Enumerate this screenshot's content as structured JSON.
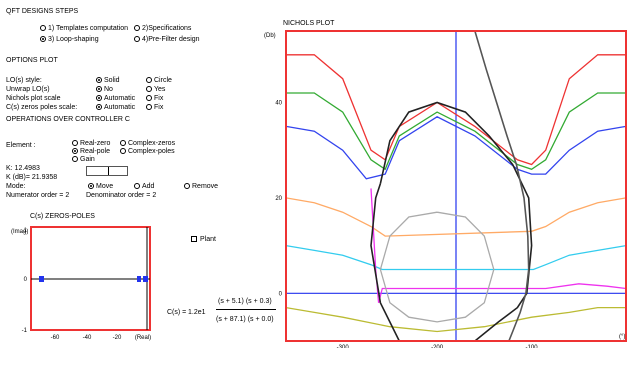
{
  "qft_steps": {
    "title": "QFT DESIGNS STEPS",
    "options": [
      {
        "label": "1) Templates computation",
        "selected": false
      },
      {
        "label": "2)Specifications",
        "selected": false
      },
      {
        "label": "3) Loop-shaping",
        "selected": true
      },
      {
        "label": "4)Pre-Filter design",
        "selected": false
      }
    ]
  },
  "options_plot": {
    "title": "OPTIONS PLOT",
    "rows": [
      {
        "label": "LO(s) style:",
        "opt1": "Solid",
        "opt1_on": true,
        "opt2": "Circle",
        "opt2_on": false
      },
      {
        "label": "Unwrap LO(s)",
        "opt1": "No",
        "opt1_on": true,
        "opt2": "Yes",
        "opt2_on": false
      },
      {
        "label": "Nichols plot scale",
        "opt1": "Automatic",
        "opt1_on": true,
        "opt2": "Fix",
        "opt2_on": false
      },
      {
        "label": "C(s) zeros poles scale:",
        "opt1": "Automatic",
        "opt1_on": true,
        "opt2": "Fix",
        "opt2_on": false
      }
    ]
  },
  "controller_ops": {
    "title": "OPERATIONS OVER CONTROLLER C",
    "element_label": "Element :",
    "elements": [
      {
        "label": "Real-zero",
        "selected": false
      },
      {
        "label": "Complex-zeros",
        "selected": false
      },
      {
        "label": "Real-pole",
        "selected": true
      },
      {
        "label": "Complex-poles",
        "selected": false
      },
      {
        "label": "Gain",
        "selected": false
      }
    ],
    "k_value": "K: 12.4983",
    "k_db": "K (dB)= 21.9358",
    "k_slider": 0.55,
    "mode_label": "Mode:",
    "modes": [
      {
        "label": "Move",
        "selected": true
      },
      {
        "label": "Add",
        "selected": false
      },
      {
        "label": "Remove",
        "selected": false
      }
    ],
    "numerator_order": "Numerator order = 2",
    "denominator_order": "Denominator order = 2"
  },
  "zeros_poles": {
    "title": "C(s) ZEROS-POLES",
    "ylabel": "(Imag)",
    "xlabel": "(Real)",
    "yticks": [
      "1",
      "0",
      "-1"
    ],
    "xticks": [
      "-60",
      "-40",
      "-20"
    ]
  },
  "plant_checkbox": {
    "label": "Plant",
    "checked": false
  },
  "transfer_function": {
    "lhs": "C(s) =",
    "gain": "1.2e1",
    "numerator": "(s + 5.1) (s + 0.3)",
    "denominator": "(s + 87.1) (s + 0.0)"
  },
  "chart_data": {
    "type": "line",
    "title": "NICHOLS PLOT",
    "ylabel": "(Db)",
    "xlabel": "(°)",
    "xticks": [
      "-300",
      "-200",
      "-100"
    ],
    "yticks": [
      "40",
      "20",
      "0"
    ],
    "xlim": [
      -360,
      0
    ],
    "ylim": [
      -10,
      55
    ],
    "series": [
      {
        "color": "#ee3333",
        "values": [
          [
            -360,
            50
          ],
          [
            -330,
            50
          ],
          [
            -300,
            45
          ],
          [
            -270,
            30
          ],
          [
            -255,
            28
          ],
          [
            -240,
            35
          ],
          [
            -200,
            40
          ],
          [
            -160,
            35
          ],
          [
            -115,
            28
          ],
          [
            -100,
            27
          ],
          [
            -85,
            30
          ],
          [
            -60,
            45
          ],
          [
            -30,
            50
          ],
          [
            0,
            50
          ]
        ]
      },
      {
        "color": "#33aa33",
        "values": [
          [
            -360,
            42
          ],
          [
            -330,
            42
          ],
          [
            -300,
            38
          ],
          [
            -270,
            28
          ],
          [
            -255,
            26
          ],
          [
            -240,
            33
          ],
          [
            -200,
            38
          ],
          [
            -160,
            34
          ],
          [
            -115,
            27
          ],
          [
            -100,
            26
          ],
          [
            -85,
            28
          ],
          [
            -60,
            38
          ],
          [
            -30,
            42
          ],
          [
            0,
            42
          ]
        ]
      },
      {
        "color": "#3344ee",
        "values": [
          [
            -360,
            35
          ],
          [
            -330,
            34
          ],
          [
            -300,
            30
          ],
          [
            -275,
            24
          ],
          [
            -255,
            25
          ],
          [
            -240,
            32
          ],
          [
            -200,
            37
          ],
          [
            -160,
            33
          ],
          [
            -115,
            26
          ],
          [
            -100,
            25
          ],
          [
            -85,
            25
          ],
          [
            -60,
            30
          ],
          [
            -30,
            34
          ],
          [
            0,
            35
          ]
        ]
      },
      {
        "color": "#ffaa66",
        "values": [
          [
            -360,
            20
          ],
          [
            -330,
            19
          ],
          [
            -300,
            17
          ],
          [
            -270,
            14
          ],
          [
            -255,
            12
          ],
          [
            -100,
            13
          ],
          [
            -85,
            14
          ],
          [
            -60,
            17
          ],
          [
            -30,
            19
          ],
          [
            0,
            20
          ]
        ]
      },
      {
        "color": "#33ccee",
        "values": [
          [
            -360,
            10
          ],
          [
            -330,
            9
          ],
          [
            -300,
            8
          ],
          [
            -270,
            6
          ],
          [
            -258,
            5
          ],
          [
            -98,
            5
          ],
          [
            -85,
            6
          ],
          [
            -60,
            8
          ],
          [
            -30,
            9
          ],
          [
            0,
            10
          ]
        ]
      },
      {
        "color": "#ee33ee",
        "values": [
          [
            -270,
            22
          ],
          [
            -265,
            5
          ],
          [
            -262,
            -2
          ],
          [
            -258,
            1
          ],
          [
            -95,
            1
          ],
          [
            -85,
            1
          ],
          [
            -50,
            2
          ],
          [
            -20,
            1.5
          ],
          [
            0,
            1
          ]
        ]
      },
      {
        "color": "#bbbb33",
        "values": [
          [
            -360,
            -3
          ],
          [
            -330,
            -4
          ],
          [
            -300,
            -5
          ],
          [
            -250,
            -7
          ],
          [
            -200,
            -8
          ],
          [
            -150,
            -7
          ],
          [
            -100,
            -5
          ],
          [
            -60,
            -4
          ],
          [
            -30,
            -3
          ],
          [
            0,
            -3
          ]
        ]
      },
      {
        "color": "#aaaaaa",
        "values": [
          [
            -200,
            17
          ],
          [
            -170,
            16
          ],
          [
            -150,
            12
          ],
          [
            -140,
            5
          ],
          [
            -150,
            -2
          ],
          [
            -170,
            -5
          ],
          [
            -200,
            -6
          ],
          [
            -230,
            -5
          ],
          [
            -250,
            -2
          ],
          [
            -260,
            5
          ],
          [
            -250,
            12
          ],
          [
            -230,
            16
          ],
          [
            -200,
            17
          ]
        ]
      },
      {
        "color": "#222222",
        "values": [
          [
            -260,
            23
          ],
          [
            -250,
            32
          ],
          [
            -230,
            38
          ],
          [
            -200,
            40
          ],
          [
            -170,
            38
          ],
          [
            -145,
            33
          ],
          [
            -120,
            27
          ],
          [
            -103,
            20
          ],
          [
            -100,
            10
          ],
          [
            -105,
            0
          ],
          [
            -115,
            -3
          ],
          [
            -135,
            -6
          ],
          [
            -160,
            -10
          ],
          [
            -200,
            -12
          ],
          [
            -240,
            -10
          ],
          [
            -260,
            -2
          ],
          [
            -270,
            10
          ],
          [
            -265,
            20
          ],
          [
            -260,
            23
          ]
        ]
      },
      {
        "color": "#555555",
        "values": [
          [
            -160,
            55
          ],
          [
            -148,
            47
          ],
          [
            -137,
            40
          ],
          [
            -126,
            33
          ],
          [
            -116,
            27
          ],
          [
            -108,
            20
          ],
          [
            -104,
            12
          ],
          [
            -103,
            5
          ],
          [
            -106,
            0
          ],
          [
            -112,
            -4
          ],
          [
            -120,
            -8
          ],
          [
            -128,
            -12
          ],
          [
            -133,
            -16
          ]
        ]
      }
    ],
    "vertical_line": -180,
    "horizontal_line": 0
  }
}
